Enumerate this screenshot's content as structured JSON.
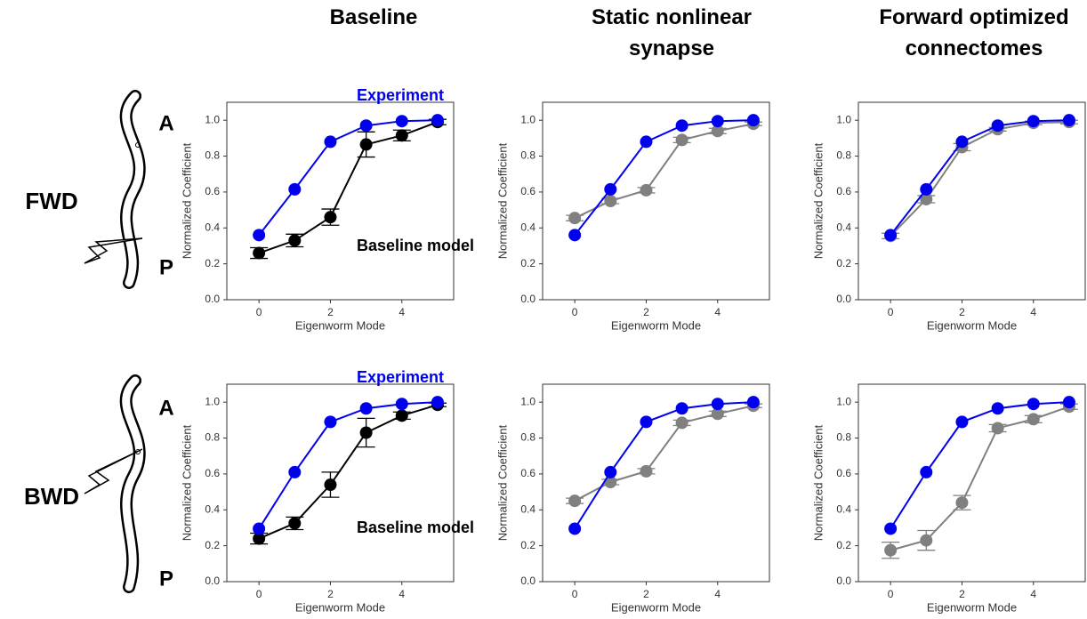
{
  "column_titles": [
    "Baseline",
    "Static nonlinear synapse",
    "Forward optimized connectomes"
  ],
  "row_labels": [
    "FWD",
    "BWD"
  ],
  "worm_labels": [
    {
      "anterior": "A",
      "posterior": "P"
    },
    {
      "anterior": "A",
      "posterior": "P"
    }
  ],
  "chart_data": [
    {
      "type": "line",
      "xlabel": "Eigenworm Mode",
      "ylabel": "Normalized Coefficient",
      "xlim": [
        -0.9,
        5.45
      ],
      "ylim": [
        0,
        1.1
      ],
      "xticks": [
        0,
        2,
        4
      ],
      "yticks": [
        {
          "value": 0,
          "label": "0.0"
        },
        0.2,
        0.4,
        0.6,
        0.8,
        {
          "value": 1,
          "label": "1.0"
        }
      ],
      "x": [
        0,
        1,
        2,
        3,
        4,
        5
      ],
      "series": [
        {
          "name": "Experiment",
          "color": "#0000ee",
          "values": [
            0.36,
            0.615,
            0.88,
            0.97,
            0.995,
            1.0
          ]
        },
        {
          "name": "Baseline model",
          "color": "#000000",
          "values": [
            0.26,
            0.33,
            0.46,
            0.865,
            0.915,
            0.99
          ],
          "errors": [
            0.03,
            0.035,
            0.045,
            0.07,
            0.03,
            0.015
          ]
        }
      ]
    },
    {
      "type": "line",
      "xlabel": "Eigenworm Mode",
      "ylabel": "Normalized Coefficient",
      "xlim": [
        -0.9,
        5.45
      ],
      "ylim": [
        0,
        1.1
      ],
      "xticks": [
        0,
        2,
        4
      ],
      "yticks": [
        {
          "value": 0,
          "label": "0.0"
        },
        0.2,
        0.4,
        0.6,
        0.8,
        {
          "value": 1,
          "label": "1.0"
        }
      ],
      "x": [
        0,
        1,
        2,
        3,
        4,
        5
      ],
      "series": [
        {
          "color": "#0000ee",
          "values": [
            0.36,
            0.615,
            0.88,
            0.97,
            0.995,
            1.0
          ]
        },
        {
          "color": "#808080",
          "values": [
            0.455,
            0.55,
            0.61,
            0.89,
            0.94,
            0.98
          ],
          "errors": [
            0.015,
            0.015,
            0.015,
            0.015,
            0.015,
            0.01
          ]
        }
      ]
    },
    {
      "type": "line",
      "xlabel": "Eigenworm Mode",
      "ylabel": "Normalized Coefficient",
      "xlim": [
        -0.9,
        5.45
      ],
      "ylim": [
        0,
        1.1
      ],
      "xticks": [
        0,
        2,
        4
      ],
      "yticks": [
        {
          "value": 0,
          "label": "0.0"
        },
        0.2,
        0.4,
        0.6,
        0.8,
        {
          "value": 1,
          "label": "1.0"
        }
      ],
      "x": [
        0,
        1,
        2,
        3,
        4,
        5
      ],
      "series": [
        {
          "color": "#0000ee",
          "values": [
            0.36,
            0.615,
            0.88,
            0.97,
            0.995,
            1.0
          ]
        },
        {
          "color": "#808080",
          "values": [
            0.355,
            0.56,
            0.85,
            0.95,
            0.985,
            0.99
          ],
          "errors": [
            0.015,
            0.02,
            0.02,
            0.01,
            0.01,
            0.01
          ]
        }
      ]
    },
    {
      "type": "line",
      "xlabel": "Eigenworm Mode",
      "ylabel": "Normalized Coefficient",
      "xlim": [
        -0.9,
        5.45
      ],
      "ylim": [
        0,
        1.1
      ],
      "xticks": [
        0,
        2,
        4
      ],
      "yticks": [
        {
          "value": 0,
          "label": "0.0"
        },
        0.2,
        0.4,
        0.6,
        0.8,
        {
          "value": 1,
          "label": "1.0"
        }
      ],
      "x": [
        0,
        1,
        2,
        3,
        4,
        5
      ],
      "series": [
        {
          "name": "Experiment",
          "color": "#0000ee",
          "values": [
            0.295,
            0.61,
            0.89,
            0.965,
            0.99,
            1.0
          ]
        },
        {
          "name": "Baseline model",
          "color": "#000000",
          "values": [
            0.24,
            0.325,
            0.54,
            0.83,
            0.925,
            0.985
          ],
          "errors": [
            0.03,
            0.035,
            0.07,
            0.08,
            0.02,
            0.01
          ]
        }
      ]
    },
    {
      "type": "line",
      "xlabel": "Eigenworm Mode",
      "ylabel": "Normalized Coefficient",
      "xlim": [
        -0.9,
        5.45
      ],
      "ylim": [
        0,
        1.1
      ],
      "xticks": [
        0,
        2,
        4
      ],
      "yticks": [
        {
          "value": 0,
          "label": "0.0"
        },
        0.2,
        0.4,
        0.6,
        0.8,
        {
          "value": 1,
          "label": "1.0"
        }
      ],
      "x": [
        0,
        1,
        2,
        3,
        4,
        5
      ],
      "series": [
        {
          "color": "#0000ee",
          "values": [
            0.295,
            0.61,
            0.89,
            0.965,
            0.99,
            1.0
          ]
        },
        {
          "color": "#808080",
          "values": [
            0.45,
            0.555,
            0.615,
            0.885,
            0.935,
            0.98
          ],
          "errors": [
            0.015,
            0.015,
            0.015,
            0.015,
            0.015,
            0.01
          ]
        }
      ]
    },
    {
      "type": "line",
      "xlabel": "Eigenworm Mode",
      "ylabel": "Normalized Coefficient",
      "xlim": [
        -0.9,
        5.45
      ],
      "ylim": [
        0,
        1.1
      ],
      "xticks": [
        0,
        2,
        4
      ],
      "yticks": [
        {
          "value": 0,
          "label": "0.0"
        },
        0.2,
        0.4,
        0.6,
        0.8,
        {
          "value": 1,
          "label": "1.0"
        }
      ],
      "x": [
        0,
        1,
        2,
        3,
        4,
        5
      ],
      "series": [
        {
          "color": "#0000ee",
          "values": [
            0.295,
            0.61,
            0.89,
            0.965,
            0.99,
            1.0
          ]
        },
        {
          "color": "#808080",
          "values": [
            0.175,
            0.23,
            0.44,
            0.855,
            0.905,
            0.975
          ],
          "errors": [
            0.045,
            0.055,
            0.04,
            0.02,
            0.02,
            0.015
          ]
        }
      ]
    }
  ]
}
